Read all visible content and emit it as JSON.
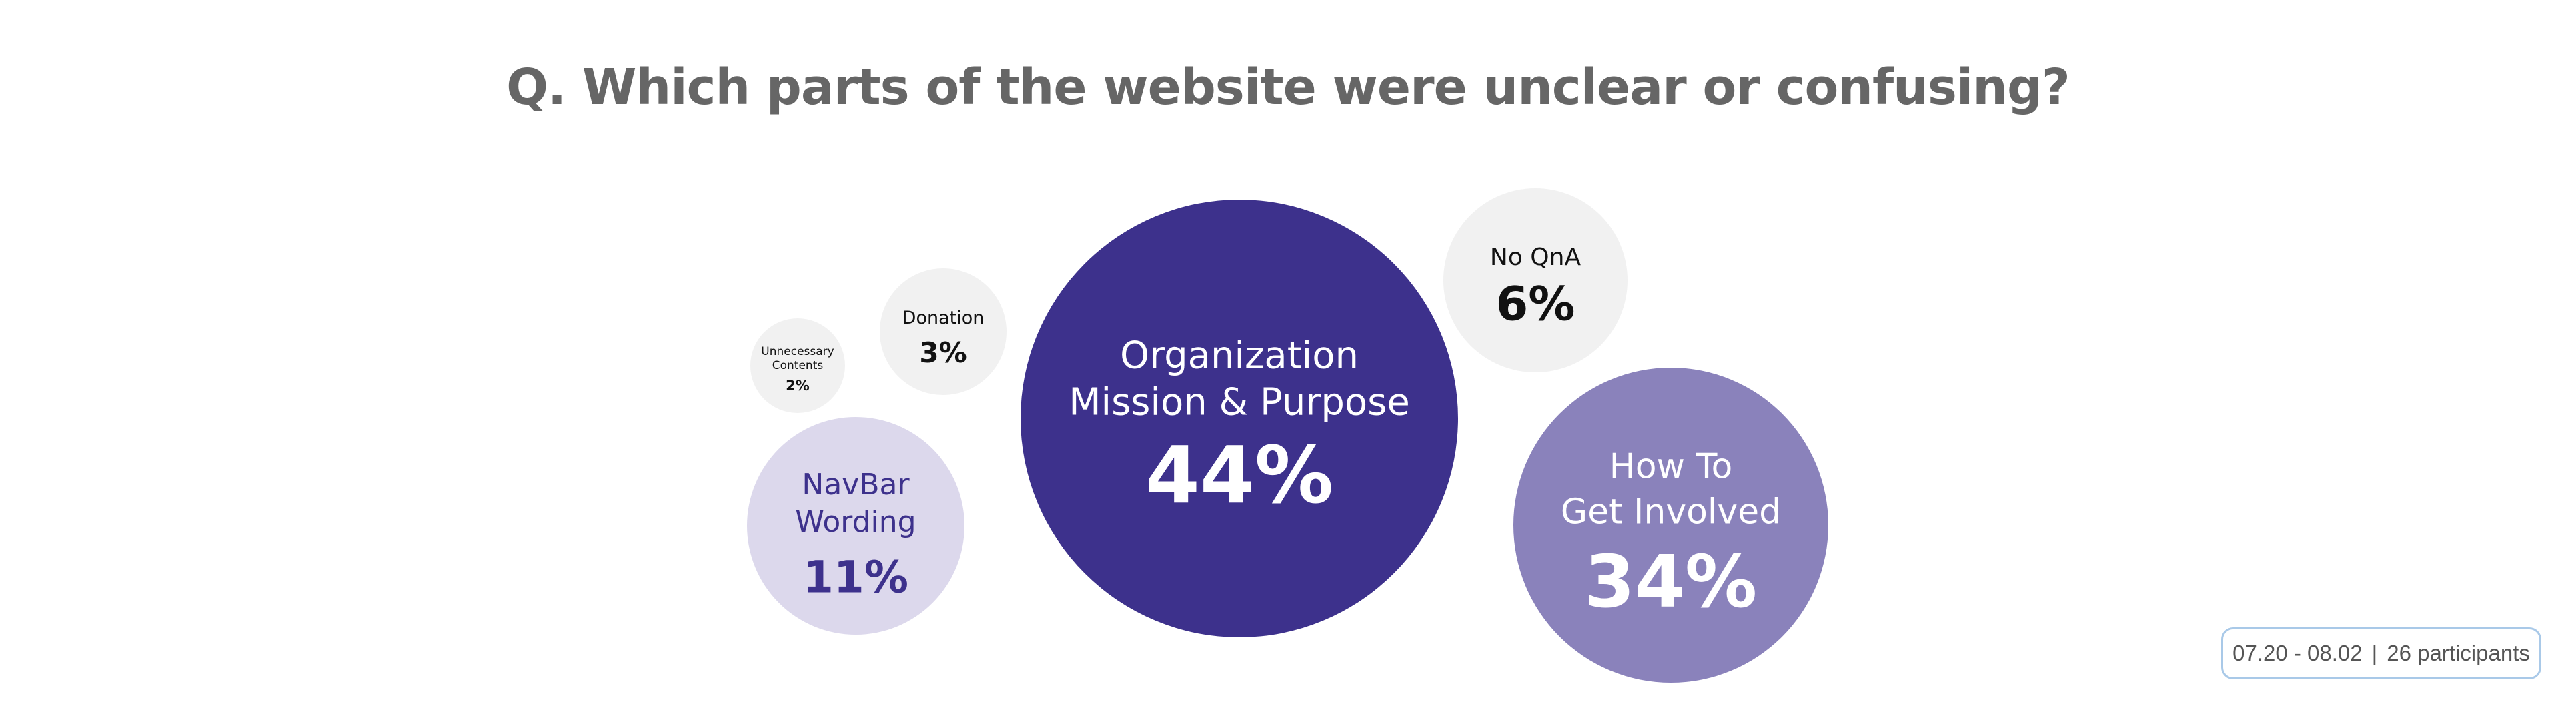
{
  "chart_data": {
    "type": "bubble",
    "title": "Q. Which parts of the website were unclear or confusing?",
    "series": [
      {
        "label_lines": [
          "Organization",
          "Mission & Purpose"
        ],
        "value": 44,
        "display": "44%",
        "fill": "#3d318c",
        "text_color": "#ffffff"
      },
      {
        "label_lines": [
          "How To",
          "Get Involved"
        ],
        "value": 34,
        "display": "34%",
        "fill": "#8a82bb",
        "text_color": "#ffffff"
      },
      {
        "label_lines": [
          "NavBar",
          "Wording"
        ],
        "value": 11,
        "display": "11%",
        "fill": "#dcd8ec",
        "text_color": "#3d318c"
      },
      {
        "label_lines": [
          "No QnA"
        ],
        "value": 6,
        "display": "6%",
        "fill": "#f1f1f1",
        "text_color": "#111111"
      },
      {
        "label_lines": [
          "Donation"
        ],
        "value": 3,
        "display": "3%",
        "fill": "#f1f1f1",
        "text_color": "#111111"
      },
      {
        "label_lines": [
          "Unnecessary",
          "Contents"
        ],
        "value": 2,
        "display": "2%",
        "fill": "#f1f1f1",
        "text_color": "#111111"
      }
    ]
  },
  "badge": {
    "dates": "07.20 - 08.02",
    "separator": "|",
    "participants": "26 participants"
  }
}
